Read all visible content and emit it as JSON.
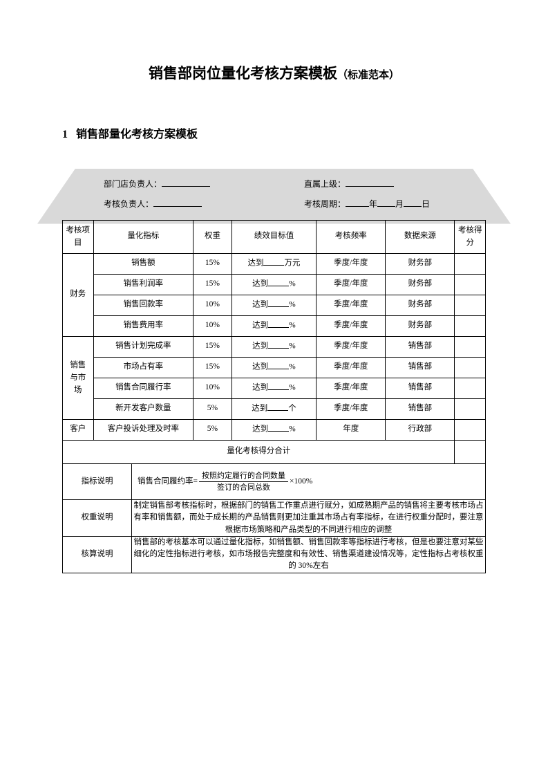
{
  "title": {
    "main": "销售部岗位量化考核方案模板",
    "sub": "（标准范本）"
  },
  "section": {
    "num": "1",
    "heading": "销售部量化考核方案模板"
  },
  "form_header": {
    "dept_label": "部门店负责人：",
    "superior_label": "直属上级：",
    "assessor_label": "考核负责人：",
    "period_label": "考核周期：",
    "year": "年",
    "month": "月",
    "day": "日"
  },
  "columns": {
    "c0": "考核项目",
    "c1": "量化指标",
    "c2": "权重",
    "c3": "绩效目标值",
    "c4": "考核频率",
    "c5": "数据来源",
    "c6": "考核得分"
  },
  "groups": [
    {
      "name": "财务",
      "rows": [
        {
          "metric": "销售额",
          "weight": "15%",
          "target_pre": "达到",
          "target_suf": "万元",
          "freq": "季度/年度",
          "source": "财务部"
        },
        {
          "metric": "销售利润率",
          "weight": "15%",
          "target_pre": "达到",
          "target_suf": "%",
          "freq": "季度/年度",
          "source": "财务部"
        },
        {
          "metric": "销售回款率",
          "weight": "10%",
          "target_pre": "达到",
          "target_suf": "%",
          "freq": "季度/年度",
          "source": "财务部"
        },
        {
          "metric": "销售费用率",
          "weight": "10%",
          "target_pre": "达到",
          "target_suf": "%",
          "freq": "季度/年度",
          "source": "财务部"
        }
      ]
    },
    {
      "name": "销售与市场",
      "rows": [
        {
          "metric": "销售计划完成率",
          "weight": "15%",
          "target_pre": "达到",
          "target_suf": "%",
          "freq": "季度/年度",
          "source": "销售部"
        },
        {
          "metric": "市场占有率",
          "weight": "15%",
          "target_pre": "达到",
          "target_suf": "%",
          "freq": "季度/年度",
          "source": "销售部"
        },
        {
          "metric": "销售合同履行率",
          "weight": "10%",
          "target_pre": "达到",
          "target_suf": "%",
          "freq": "季度/年度",
          "source": "销售部"
        },
        {
          "metric": "新开发客户数量",
          "weight": "5%",
          "target_pre": "达到",
          "target_suf": "个",
          "freq": "季度/年度",
          "source": "销售部"
        }
      ]
    },
    {
      "name": "客户",
      "rows": [
        {
          "metric": "客户投诉处理及时率",
          "weight": "5%",
          "target_pre": "达到",
          "target_suf": "%",
          "freq": "年度",
          "source": "行政部"
        }
      ]
    }
  ],
  "subtotal": "量化考核得分合计",
  "notes": {
    "n1_label": "指标说明",
    "n1_prefix": "销售合同履约率=",
    "n1_num": "按照约定履行的合同数量",
    "n1_den": "签订的合同总数",
    "n1_suffix": "×100%",
    "n2_label": "权重说明",
    "n2_body": "制定销售部考核指标时，根据部门的销售工作重点进行赋分，如成熟期产品的销售将主要考核市场占有率和销售额，而处于成长期的产品销售则更加注重其市场占有率指标，在进行权重分配时，要注意根据市场策略和产品类型的不同进行相应的调整",
    "n3_label": "核算说明",
    "n3_body": "销售部的考核基本可以通过量化指标，如销售额、销售回款率等指标进行考核，但是也要注意对某些细化的定性指标进行考核，如市场报告完整度和有效性、销售渠道建设情况等，定性指标占考核权重的 30%左右"
  },
  "style": {
    "page_bg": "#ffffff",
    "text_color": "#000000",
    "border_color": "#000000",
    "trapezoid_fill": "#d9d9d9",
    "title_fontsize": 21,
    "subtitle_fontsize": 15,
    "body_fontsize": 11.5
  }
}
